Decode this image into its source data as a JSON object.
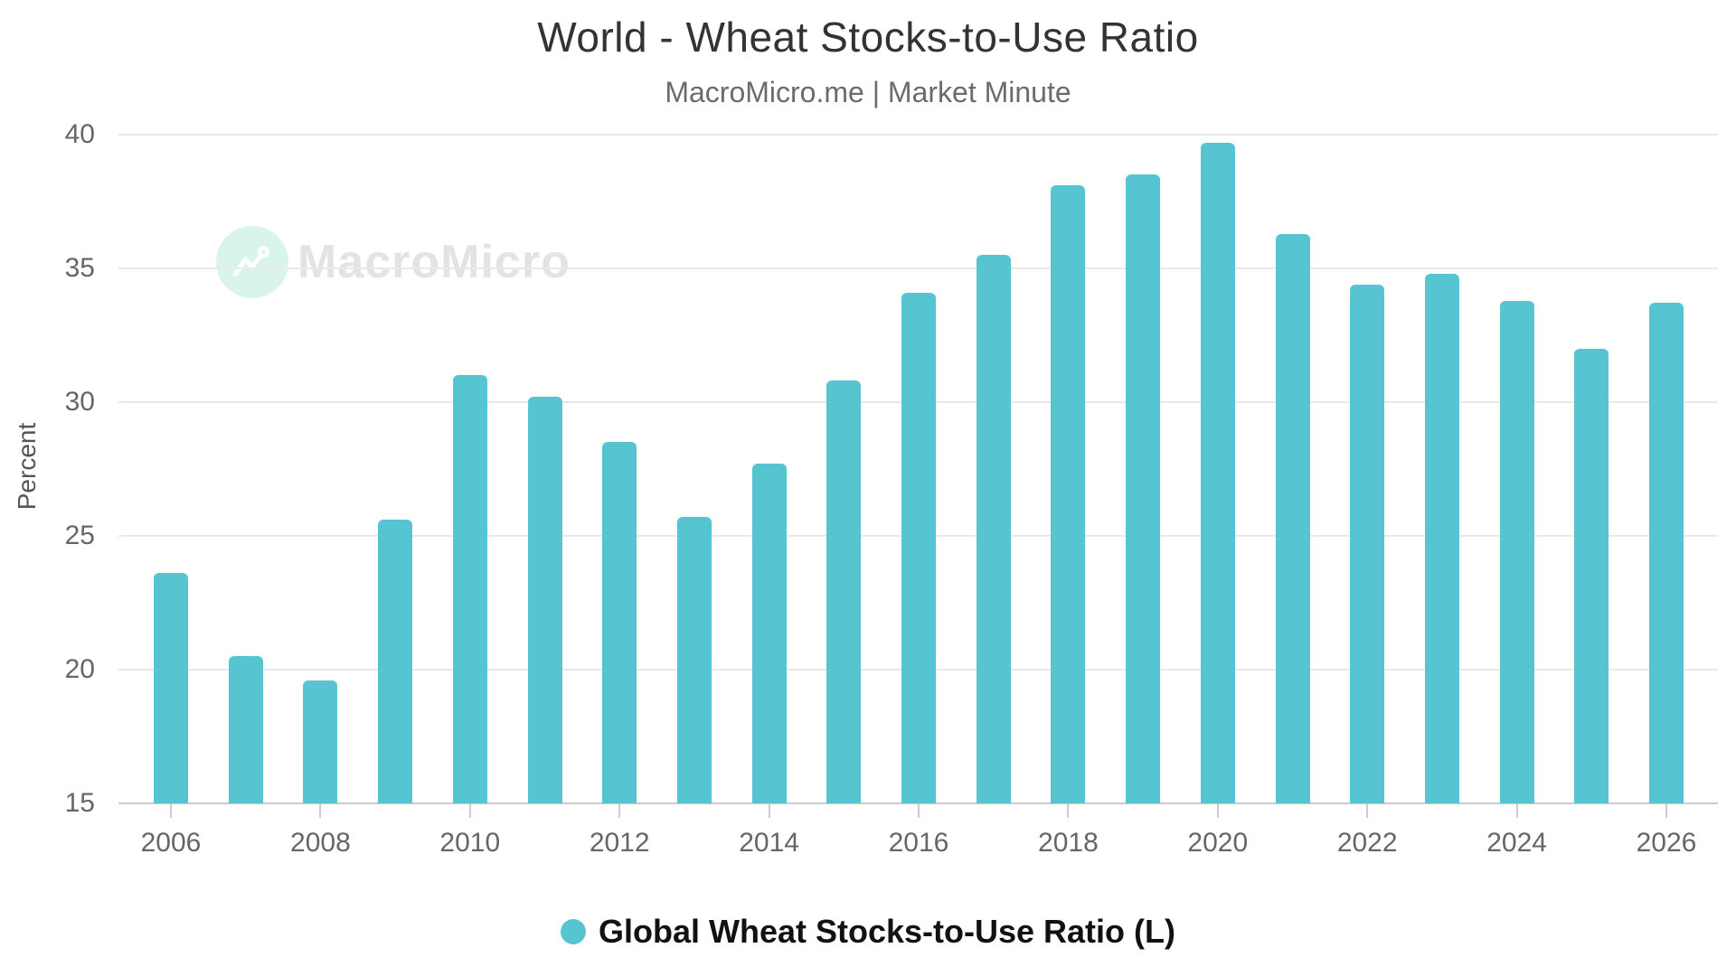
{
  "chart": {
    "title": "World - Wheat Stocks-to-Use Ratio",
    "subtitle": "MacroMicro.me | Market Minute"
  },
  "watermark": {
    "text": "MacroMicro",
    "logo_icon": "line-chart-icon"
  },
  "legend": {
    "label": "Global Wheat Stocks-to-Use Ratio (L)"
  },
  "colors": {
    "bar": "#57c5d1",
    "legend_dot": "#57c5d1",
    "watermark_circle": "#d9f4ed",
    "watermark_glyph": "#ffffff",
    "gridline": "#e9e9eb",
    "axis_line": "#cccccc",
    "title_text": "#333333",
    "subtitle_text": "#6b6b6b",
    "tick_text": "#666666"
  },
  "chart_data": {
    "type": "bar",
    "title": "World - Wheat Stocks-to-Use Ratio",
    "subtitle": "MacroMicro.me | Market Minute",
    "xlabel": "",
    "ylabel": "Percent",
    "categories": [
      "2006",
      "2007",
      "2008",
      "2009",
      "2010",
      "2011",
      "2012",
      "2013",
      "2014",
      "2015",
      "2016",
      "2017",
      "2018",
      "2019",
      "2020",
      "2021",
      "2022",
      "2023",
      "2024",
      "2025",
      "2026"
    ],
    "values": [
      23.6,
      20.5,
      19.6,
      25.6,
      31.0,
      30.2,
      28.5,
      25.7,
      27.7,
      30.8,
      34.1,
      35.5,
      38.1,
      38.5,
      39.7,
      36.3,
      34.4,
      34.8,
      33.8,
      32.0,
      33.7
    ],
    "ylim": [
      15,
      40
    ],
    "yticks": [
      15,
      20,
      25,
      30,
      35,
      40
    ],
    "x_tick_labels": [
      "2006",
      "2008",
      "2010",
      "2012",
      "2014",
      "2016",
      "2018",
      "2020",
      "2022",
      "2024",
      "2026"
    ],
    "grid": true,
    "legend": [
      "Global Wheat Stocks-to-Use Ratio (L)"
    ],
    "legend_position": "bottom"
  }
}
